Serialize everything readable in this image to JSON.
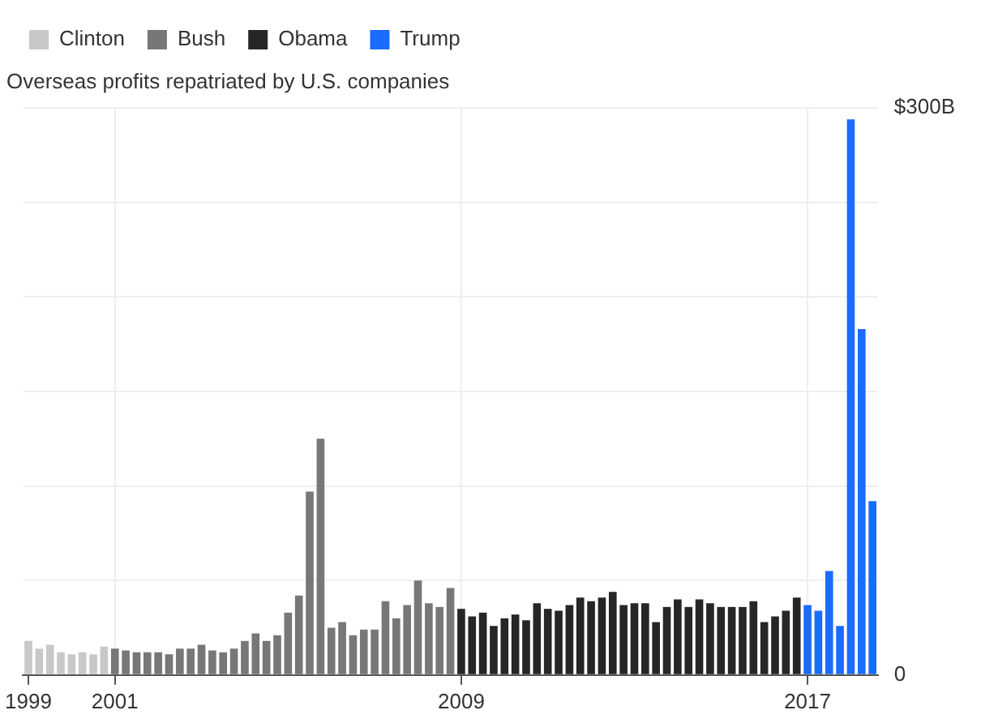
{
  "chart_data": {
    "type": "bar",
    "title": "Overseas profits repatriated by U.S. companies",
    "categories": [
      "1999",
      null,
      null,
      null,
      null,
      null,
      null,
      null,
      "2001",
      null,
      null,
      null,
      null,
      null,
      null,
      null,
      null,
      null,
      null,
      null,
      null,
      null,
      null,
      null,
      null,
      null,
      null,
      null,
      null,
      null,
      null,
      null,
      null,
      null,
      null,
      null,
      null,
      null,
      null,
      null,
      "2009",
      null,
      null,
      null,
      null,
      null,
      null,
      null,
      null,
      null,
      null,
      null,
      null,
      null,
      null,
      null,
      null,
      null,
      null,
      null,
      null,
      null,
      null,
      null,
      null,
      null,
      null,
      null,
      null,
      null,
      null,
      null,
      "2017",
      null,
      null,
      null,
      null,
      null,
      null
    ],
    "series": [
      {
        "name": "Clinton",
        "color": "#c8c8c8",
        "values": [
          18,
          14,
          16,
          12,
          11,
          12,
          11,
          15,
          null,
          null,
          null,
          null,
          null,
          null,
          null,
          null,
          null,
          null,
          null,
          null,
          null,
          null,
          null,
          null,
          null,
          null,
          null,
          null,
          null,
          null,
          null,
          null,
          null,
          null,
          null,
          null,
          null,
          null,
          null,
          null,
          null,
          null,
          null,
          null,
          null,
          null,
          null,
          null,
          null,
          null,
          null,
          null,
          null,
          null,
          null,
          null,
          null,
          null,
          null,
          null,
          null,
          null,
          null,
          null,
          null,
          null,
          null,
          null,
          null,
          null,
          null,
          null,
          null,
          null,
          null,
          null,
          null,
          null,
          null
        ]
      },
      {
        "name": "Bush",
        "color": "#777777",
        "values": [
          null,
          null,
          null,
          null,
          null,
          null,
          null,
          null,
          14,
          13,
          12,
          12,
          12,
          11,
          14,
          14,
          16,
          13,
          12,
          14,
          18,
          22,
          18,
          21,
          33,
          42,
          97,
          125,
          25,
          28,
          21,
          24,
          24,
          39,
          30,
          37,
          50,
          38,
          36,
          46,
          null,
          null,
          null,
          null,
          null,
          null,
          null,
          null,
          null,
          null,
          null,
          null,
          null,
          null,
          null,
          null,
          null,
          null,
          null,
          null,
          null,
          null,
          null,
          null,
          null,
          null,
          null,
          null,
          null,
          null,
          null,
          null,
          null,
          null,
          null,
          null,
          null,
          null,
          null
        ]
      },
      {
        "name": "Obama",
        "color": "#262626",
        "values": [
          null,
          null,
          null,
          null,
          null,
          null,
          null,
          null,
          null,
          null,
          null,
          null,
          null,
          null,
          null,
          null,
          null,
          null,
          null,
          null,
          null,
          null,
          null,
          null,
          null,
          null,
          null,
          null,
          null,
          null,
          null,
          null,
          null,
          null,
          null,
          null,
          null,
          null,
          null,
          null,
          35,
          31,
          33,
          26,
          30,
          32,
          29,
          38,
          35,
          34,
          37,
          41,
          39,
          41,
          44,
          37,
          38,
          38,
          28,
          36,
          40,
          36,
          40,
          38,
          36,
          36,
          36,
          39,
          28,
          31,
          34,
          41,
          null,
          null,
          null,
          null,
          null,
          null,
          null
        ]
      },
      {
        "name": "Trump",
        "color": "#1a6cff",
        "values": [
          null,
          null,
          null,
          null,
          null,
          null,
          null,
          null,
          null,
          null,
          null,
          null,
          null,
          null,
          null,
          null,
          null,
          null,
          null,
          null,
          null,
          null,
          null,
          null,
          null,
          null,
          null,
          null,
          null,
          null,
          null,
          null,
          null,
          null,
          null,
          null,
          null,
          null,
          null,
          null,
          null,
          null,
          null,
          null,
          null,
          null,
          null,
          null,
          null,
          null,
          null,
          null,
          null,
          null,
          null,
          null,
          null,
          null,
          null,
          null,
          null,
          null,
          null,
          null,
          null,
          null,
          null,
          null,
          null,
          null,
          null,
          null,
          37,
          34,
          55,
          26,
          294,
          183,
          92
        ]
      }
    ],
    "ylim": [
      0,
      300
    ],
    "yticks": [
      {
        "value": 0,
        "label": "0"
      },
      {
        "value": 50,
        "label": null
      },
      {
        "value": 100,
        "label": null
      },
      {
        "value": 150,
        "label": null
      },
      {
        "value": 200,
        "label": null
      },
      {
        "value": 250,
        "label": null
      },
      {
        "value": 300,
        "label": "$300B"
      }
    ],
    "grid": true,
    "legend": "top left"
  }
}
